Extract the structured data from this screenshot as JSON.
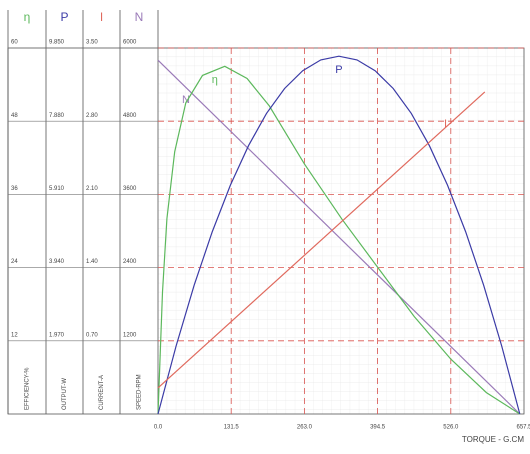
{
  "chart_data": {
    "type": "line",
    "x_title": "TORQUE - G.CM",
    "xlim": [
      0,
      657.5
    ],
    "xticks": [
      {
        "value": 0,
        "label": "0.0"
      },
      131.5,
      {
        "value": 263,
        "label": "263.0"
      },
      394.5,
      {
        "value": 526,
        "label": "526.0"
      },
      657.5
    ],
    "grid": true,
    "axes": [
      {
        "symbol": "η",
        "title": "EFFICIENCY-%",
        "color": "#5cb85c",
        "ylim": [
          0,
          60
        ],
        "yticks": [
          12,
          24,
          36,
          48,
          60
        ]
      },
      {
        "symbol": "P",
        "title": "OUTPUT-W",
        "color": "#3b3ba6",
        "ylim": [
          0,
          9.85
        ],
        "yticks": [
          {
            "value": 1.97,
            "label": "1.970"
          },
          {
            "value": 3.94,
            "label": "3.940"
          },
          {
            "value": 5.91,
            "label": "5.910"
          },
          {
            "value": 7.88,
            "label": "7.880"
          },
          {
            "value": 9.85,
            "label": "9.850"
          }
        ]
      },
      {
        "symbol": "I",
        "title": "CURRENT-A",
        "color": "#e06a5e",
        "ylim": [
          0,
          3.5
        ],
        "yticks": [
          {
            "value": 0.7,
            "label": "0.70"
          },
          {
            "value": 1.4,
            "label": "1.40"
          },
          {
            "value": 2.1,
            "label": "2.10"
          },
          {
            "value": 2.8,
            "label": "2.80"
          },
          {
            "value": 3.5,
            "label": "3.50"
          }
        ]
      },
      {
        "symbol": "N",
        "title": "SPEED-RPM",
        "color": "#9a7ab8",
        "ylim": [
          0,
          6000
        ],
        "yticks": [
          1200,
          2400,
          3600,
          4800,
          6000
        ]
      }
    ],
    "series": [
      {
        "name": "N",
        "axis": 3,
        "color": "#9a7ab8",
        "x": [
          0,
          650
        ],
        "values": [
          5800,
          0
        ]
      },
      {
        "name": "η",
        "axis": 0,
        "color": "#5cb85c",
        "x": [
          0,
          8,
          16,
          30,
          50,
          80,
          120,
          160,
          200,
          263,
          330,
          395,
          460,
          526,
          590,
          650
        ],
        "values": [
          0,
          20,
          32,
          43,
          51,
          55.5,
          57,
          55,
          50.5,
          41,
          32,
          24,
          16,
          9,
          3.5,
          0
        ]
      },
      {
        "name": "P",
        "axis": 1,
        "color": "#3b3ba6",
        "x": [
          0,
          32.5,
          65,
          97.5,
          130,
          162.5,
          195,
          227.5,
          260,
          292.5,
          325,
          357.5,
          390,
          422.5,
          455,
          487.5,
          520,
          552.5,
          585,
          617.5,
          650
        ],
        "values": [
          0,
          1.83,
          3.47,
          4.91,
          6.16,
          7.22,
          8.09,
          8.76,
          9.24,
          9.53,
          9.63,
          9.53,
          9.24,
          8.76,
          8.09,
          7.22,
          6.16,
          4.91,
          3.47,
          1.83,
          0
        ]
      },
      {
        "name": "I",
        "axis": 2,
        "color": "#e06a5e",
        "x": [
          0,
          587
        ],
        "values": [
          0.25,
          3.08
        ]
      }
    ]
  }
}
